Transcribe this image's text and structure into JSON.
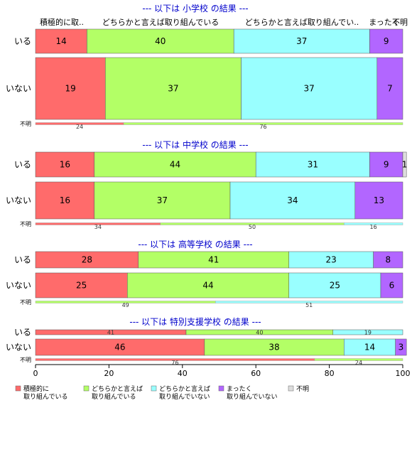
{
  "colors": {
    "series": [
      "#ff6b6b",
      "#b3ff66",
      "#99ffff",
      "#b266ff",
      "#dddddd"
    ],
    "title": "#0000cc"
  },
  "column_headers": [
    "積極的に取..",
    "どちらかと言えば取り組んでいる",
    "どちらかと言えば取り組んでい..",
    "まったく",
    "不明"
  ],
  "legend": [
    [
      "積極的に",
      "取り組んでいる"
    ],
    [
      "どちらかと言えば",
      "取り組んでいる"
    ],
    [
      "どちらかと言えば",
      "取り組んでいない"
    ],
    [
      "まったく",
      "取り組んでいない"
    ],
    [
      "不明"
    ]
  ],
  "chart_data": {
    "type": "bar",
    "orientation": "horizontal-stacked-100",
    "xlim": [
      0,
      100
    ],
    "xticks": [
      0,
      20,
      40,
      60,
      80,
      100
    ],
    "panels": [
      {
        "title": "--- 以下は 小学校 の結果 ---",
        "rows": [
          {
            "label": "いる",
            "values": [
              14,
              40,
              37,
              9,
              0
            ],
            "display": [
              "14",
              "40",
              "37",
              "9",
              ""
            ]
          },
          {
            "label": "いない",
            "values": [
              19,
              37,
              37,
              7,
              0
            ],
            "display": [
              "19",
              "37",
              "37",
              "7",
              ""
            ]
          }
        ],
        "humei": {
          "label": "不明",
          "values": [
            24,
            76
          ],
          "display": [
            "24",
            "76"
          ],
          "color_index": [
            0,
            1
          ]
        }
      },
      {
        "title": "--- 以下は 中学校 の結果 ---",
        "rows": [
          {
            "label": "いる",
            "values": [
              16,
              44,
              31,
              9,
              1
            ],
            "display": [
              "16",
              "44",
              "31",
              "9",
              "1"
            ]
          },
          {
            "label": "いない",
            "values": [
              16,
              37,
              34,
              13,
              0
            ],
            "display": [
              "16",
              "37",
              "34",
              "13",
              ""
            ]
          }
        ],
        "humei": {
          "label": "不明",
          "values": [
            34,
            50,
            16
          ],
          "display": [
            "34",
            "50",
            "16"
          ],
          "color_index": [
            0,
            1,
            2
          ]
        }
      },
      {
        "title": "--- 以下は 高等学校 の結果 ---",
        "rows": [
          {
            "label": "いる",
            "values": [
              28,
              41,
              23,
              8,
              0
            ],
            "display": [
              "28",
              "41",
              "23",
              "8",
              ""
            ]
          },
          {
            "label": "いない",
            "values": [
              25,
              44,
              25,
              6,
              0
            ],
            "display": [
              "25",
              "44",
              "25",
              "6",
              ""
            ]
          }
        ],
        "humei": {
          "label": "不明",
          "values": [
            49,
            51
          ],
          "display": [
            "49",
            "51"
          ],
          "color_index": [
            1,
            2
          ]
        }
      },
      {
        "title": "--- 以下は 特別支援学校 の結果 ---",
        "rows": [
          {
            "label": "いる",
            "values": [
              41,
              40,
              19,
              0,
              0
            ],
            "display": [
              "41",
              "40",
              "19",
              "",
              ""
            ]
          },
          {
            "label": "いない",
            "values": [
              46,
              38,
              14,
              3,
              0
            ],
            "display": [
              "46",
              "38",
              "14",
              "3",
              ""
            ]
          }
        ],
        "humei": {
          "label": "不明",
          "values": [
            76,
            24
          ],
          "display": [
            "76",
            "24"
          ],
          "color_index": [
            0,
            1
          ]
        }
      }
    ]
  }
}
